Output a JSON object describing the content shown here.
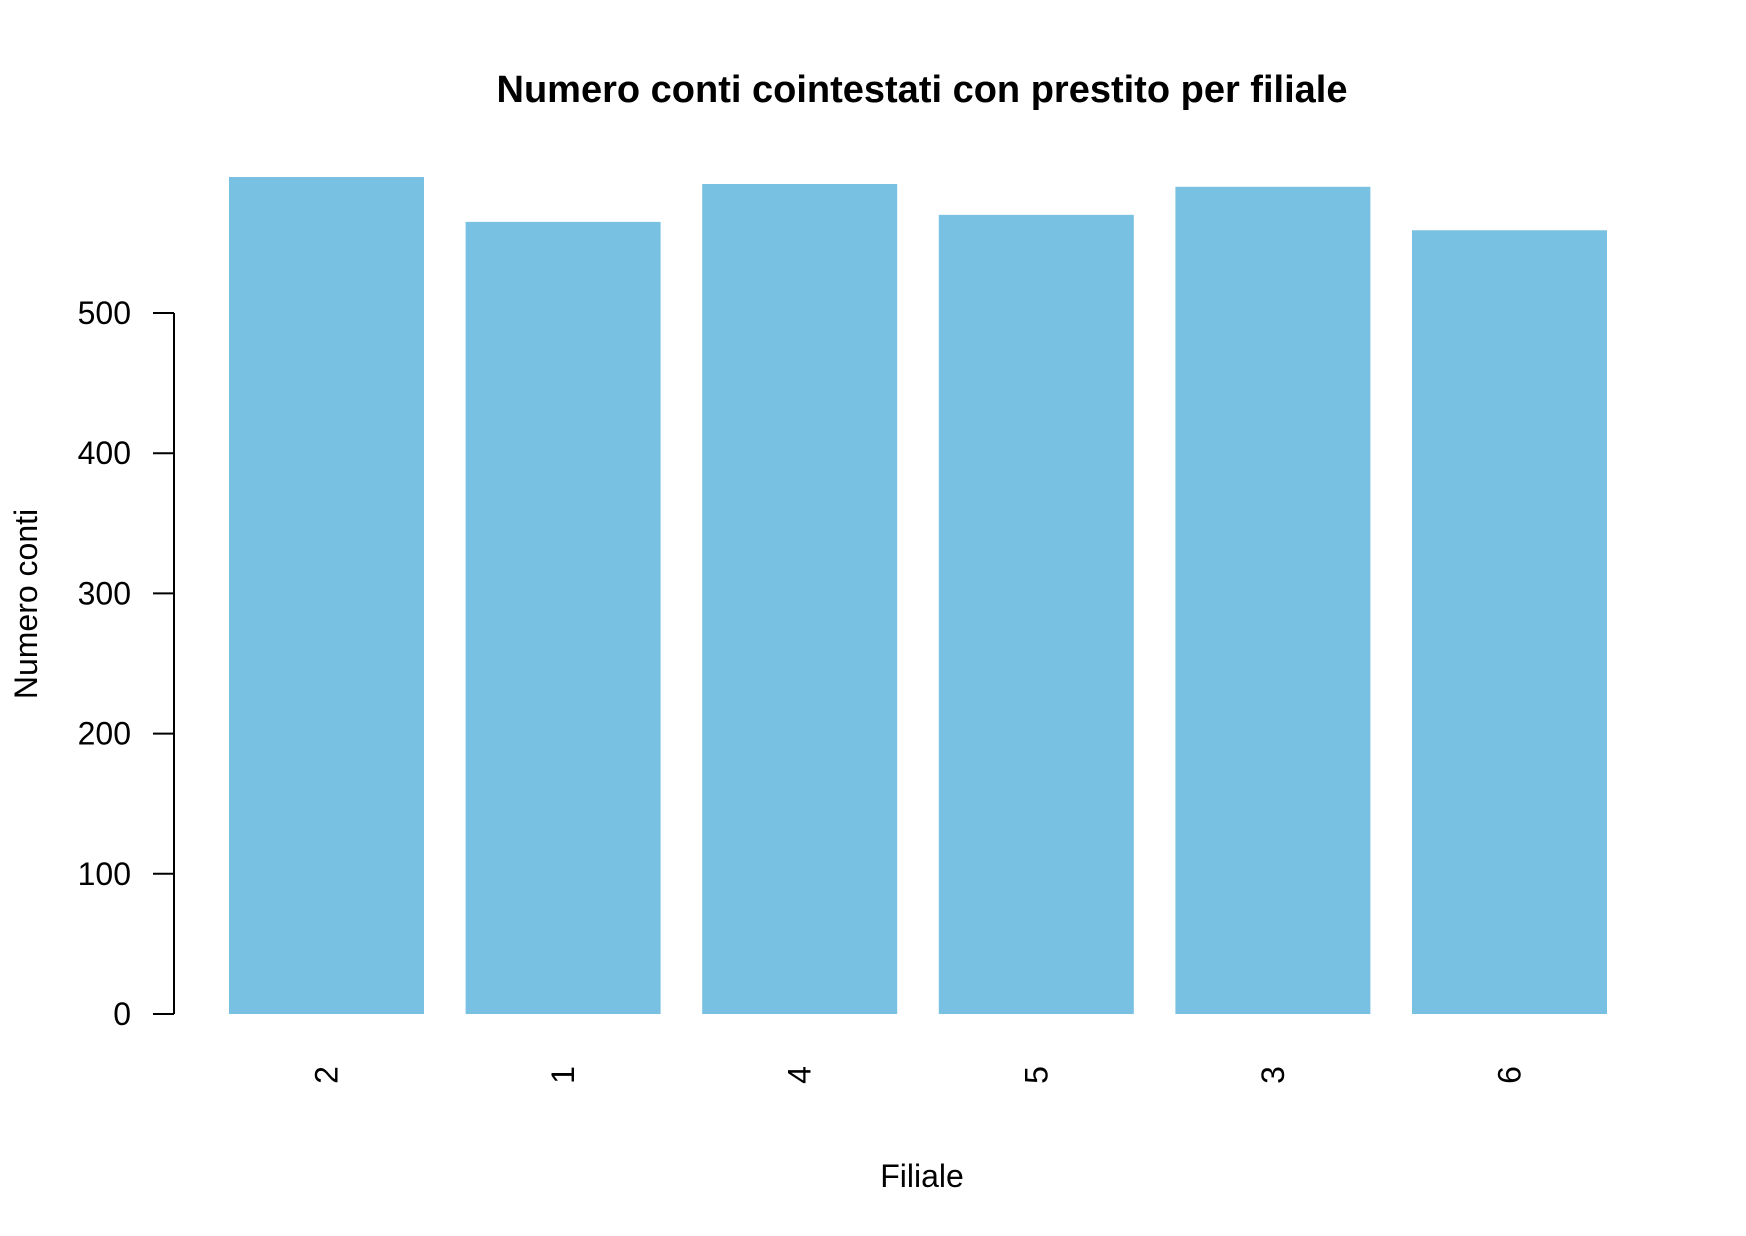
{
  "chart_data": {
    "type": "bar",
    "title": "Numero conti cointestati con prestito per filiale",
    "xlabel": "Filiale",
    "ylabel": "Numero conti",
    "categories": [
      "2",
      "1",
      "4",
      "5",
      "3",
      "6"
    ],
    "values": [
      597,
      565,
      592,
      570,
      590,
      559
    ],
    "ylim": [
      0,
      600
    ],
    "y_ticks": [
      0,
      100,
      200,
      300,
      400,
      500
    ],
    "bar_color": "#79C1E3",
    "grid": false,
    "legend": "none"
  }
}
